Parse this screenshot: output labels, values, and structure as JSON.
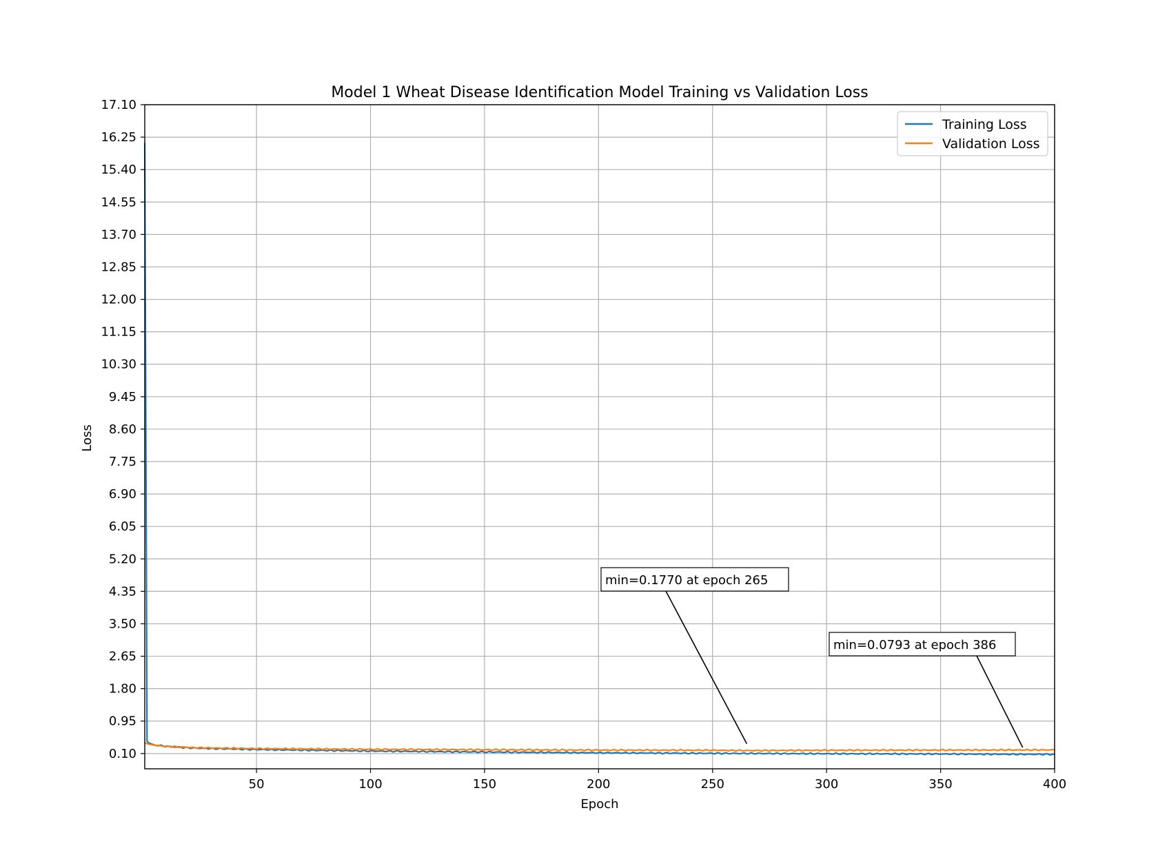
{
  "chart_data": {
    "type": "line",
    "title": "Model 1 Wheat Disease Identification Model Training vs Validation Loss",
    "xlabel": "Epoch",
    "ylabel": "Loss",
    "xlim": [
      1,
      400
    ],
    "ylim": [
      -0.3,
      17.1
    ],
    "xticks": [
      50,
      100,
      150,
      200,
      250,
      300,
      350,
      400
    ],
    "yticks": [
      "0.10",
      "0.95",
      "1.80",
      "2.65",
      "3.50",
      "4.35",
      "5.20",
      "6.05",
      "6.90",
      "7.75",
      "8.60",
      "9.45",
      "10.30",
      "11.15",
      "12.00",
      "12.85",
      "13.70",
      "14.55",
      "15.40",
      "16.25",
      "17.10"
    ],
    "grid": true,
    "legend_position": "top-right",
    "series": [
      {
        "name": "Training Loss",
        "color": "#1f77b4",
        "points": [
          [
            1,
            16.1
          ],
          [
            2,
            0.42
          ],
          [
            3,
            0.37
          ],
          [
            5,
            0.33
          ],
          [
            10,
            0.29
          ],
          [
            20,
            0.25
          ],
          [
            30,
            0.23
          ],
          [
            50,
            0.205
          ],
          [
            75,
            0.185
          ],
          [
            100,
            0.165
          ],
          [
            150,
            0.14
          ],
          [
            200,
            0.12
          ],
          [
            250,
            0.105
          ],
          [
            300,
            0.095
          ],
          [
            350,
            0.088
          ],
          [
            386,
            0.0793
          ],
          [
            400,
            0.08
          ]
        ]
      },
      {
        "name": "Validation Loss",
        "color": "#ff7f0e",
        "points": [
          [
            1,
            0.38
          ],
          [
            3,
            0.34
          ],
          [
            5,
            0.32
          ],
          [
            10,
            0.29
          ],
          [
            20,
            0.26
          ],
          [
            30,
            0.245
          ],
          [
            50,
            0.23
          ],
          [
            75,
            0.22
          ],
          [
            100,
            0.21
          ],
          [
            150,
            0.2
          ],
          [
            200,
            0.19
          ],
          [
            250,
            0.185
          ],
          [
            265,
            0.177
          ],
          [
            300,
            0.185
          ],
          [
            350,
            0.19
          ],
          [
            400,
            0.195
          ]
        ]
      }
    ],
    "annotations": [
      {
        "text": "min=0.1770 at epoch 265",
        "target_epoch": 265,
        "target_value": 0.177
      },
      {
        "text": "min=0.0793 at epoch 386",
        "target_epoch": 386,
        "target_value": 0.0793
      }
    ]
  }
}
